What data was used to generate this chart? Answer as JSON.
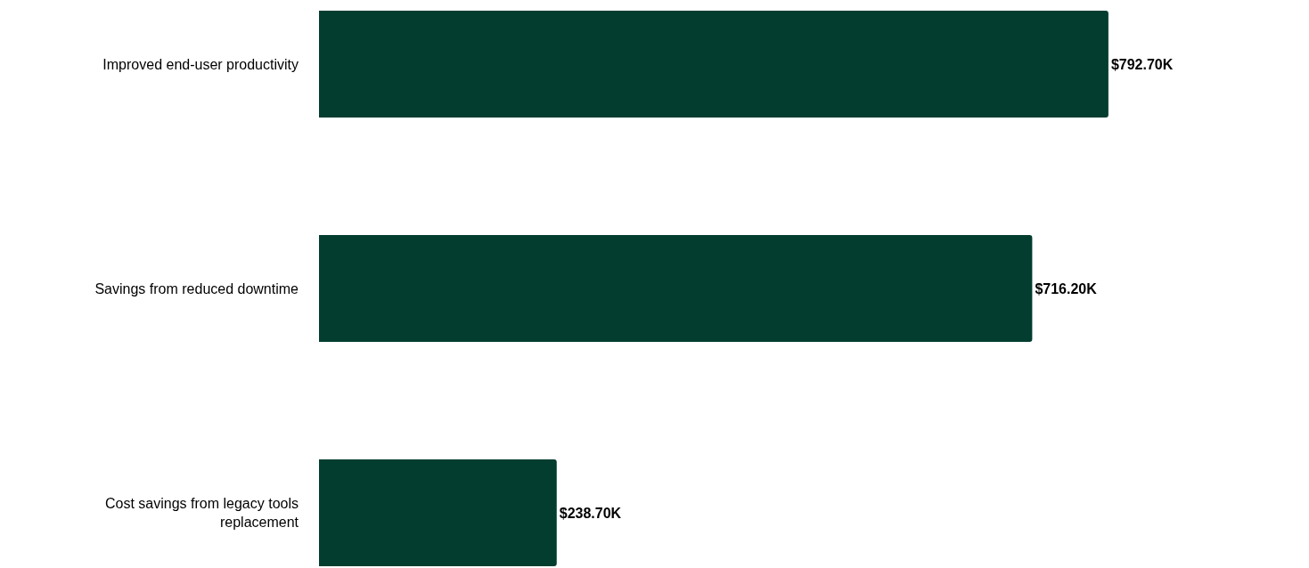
{
  "chart_data": {
    "type": "bar",
    "orientation": "horizontal",
    "categories": [
      "Improved end-user productivity",
      "Savings from reduced downtime",
      "Cost savings from legacy tools replacement"
    ],
    "values": [
      792.7,
      716.2,
      238.7
    ],
    "value_labels": [
      "$792.70K",
      "$716.20K",
      "$238.70K"
    ],
    "color": "#023d2f"
  }
}
